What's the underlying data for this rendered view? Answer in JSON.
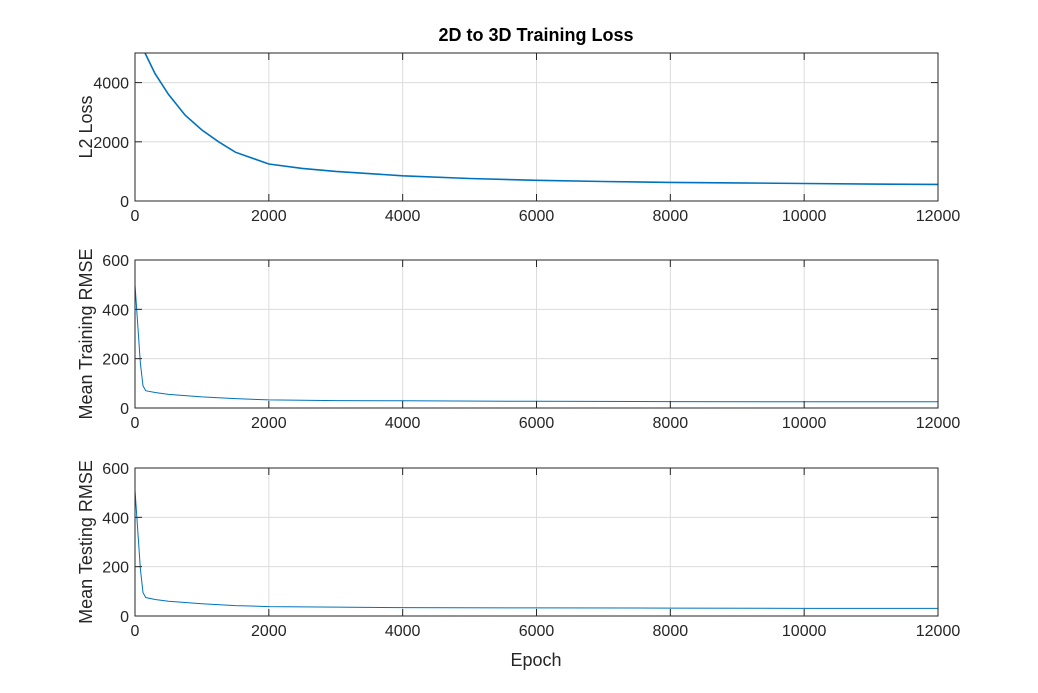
{
  "chart_data": [
    {
      "type": "line",
      "title": "2D to 3D Training Loss",
      "xlabel": "",
      "ylabel": "L2 Loss",
      "xlim": [
        0,
        12000
      ],
      "ylim": [
        0,
        5000
      ],
      "xticks": [
        0,
        2000,
        4000,
        6000,
        8000,
        10000,
        12000
      ],
      "yticks": [
        0,
        2000,
        4000
      ],
      "grid": true,
      "series": [
        {
          "color": "#0072bd",
          "x": [
            150,
            300,
            500,
            750,
            1000,
            1250,
            1500,
            2000,
            2500,
            3000,
            4000,
            5000,
            6000,
            7000,
            8000,
            9000,
            10000,
            11000,
            12000
          ],
          "y": [
            5000,
            4300,
            3600,
            2900,
            2400,
            2000,
            1650,
            1250,
            1100,
            1000,
            850,
            760,
            700,
            660,
            630,
            610,
            590,
            570,
            560
          ]
        }
      ]
    },
    {
      "type": "line",
      "title": "",
      "xlabel": "",
      "ylabel": "Mean Training RMSE",
      "xlim": [
        0,
        12000
      ],
      "ylim": [
        0,
        600
      ],
      "xticks": [
        0,
        2000,
        4000,
        6000,
        8000,
        10000,
        12000
      ],
      "yticks": [
        0,
        200,
        400,
        600
      ],
      "grid": true,
      "series": [
        {
          "color": "#0072bd",
          "x": [
            0,
            40,
            80,
            120,
            160,
            300,
            500,
            1000,
            1500,
            2000,
            3000,
            4000,
            6000,
            8000,
            10000,
            12000
          ],
          "y": [
            500,
            340,
            180,
            90,
            70,
            63,
            55,
            45,
            38,
            33,
            30,
            29,
            27,
            26,
            25,
            25
          ]
        }
      ]
    },
    {
      "type": "line",
      "title": "",
      "xlabel": "Epoch",
      "ylabel": "Mean Testing RMSE",
      "xlim": [
        0,
        12000
      ],
      "ylim": [
        0,
        600
      ],
      "xticks": [
        0,
        2000,
        4000,
        6000,
        8000,
        10000,
        12000
      ],
      "yticks": [
        0,
        200,
        400,
        600
      ],
      "grid": true,
      "series": [
        {
          "color": "#0072bd",
          "x": [
            0,
            40,
            80,
            120,
            160,
            300,
            500,
            1000,
            1500,
            2000,
            3000,
            4000,
            6000,
            8000,
            10000,
            12000
          ],
          "y": [
            510,
            350,
            190,
            95,
            75,
            67,
            60,
            50,
            42,
            38,
            36,
            34,
            33,
            32,
            31,
            31
          ]
        }
      ]
    }
  ]
}
